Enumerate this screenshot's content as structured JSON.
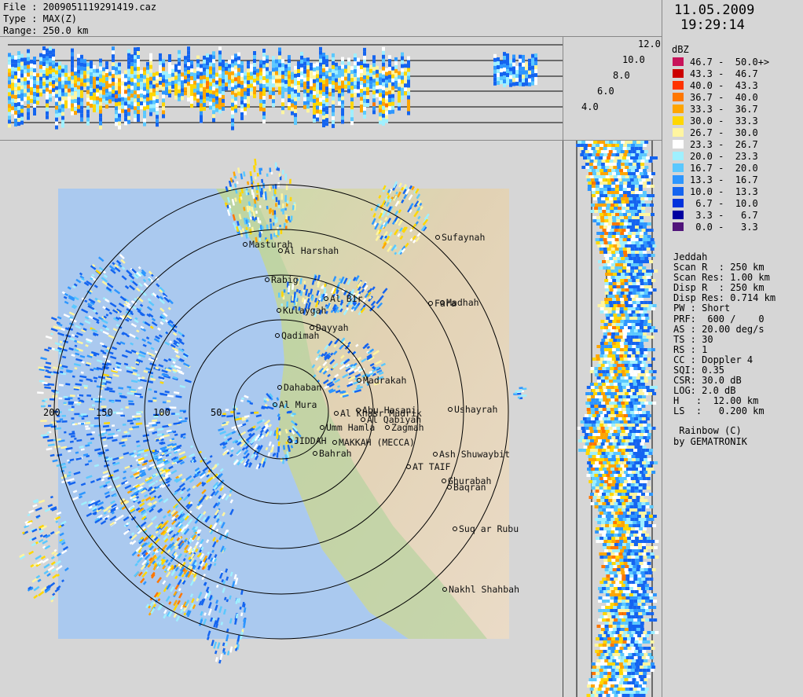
{
  "header": {
    "file": "File : 2009051119291419.caz",
    "type": "Type : MAX(Z)",
    "range": "Range: 250.0 km"
  },
  "timestamp": {
    "date": "11.05.2009",
    "time": "19:29:14"
  },
  "legend": {
    "unit": "dBZ",
    "entries": [
      {
        "label": "46.7 -  50.0+>",
        "color": "#c8145a"
      },
      {
        "label": "43.3 -  46.7",
        "color": "#cc0000"
      },
      {
        "label": "40.0 -  43.3",
        "color": "#ff3300"
      },
      {
        "label": "36.7 -  40.0",
        "color": "#ff7700"
      },
      {
        "label": "33.3 -  36.7",
        "color": "#ffa500"
      },
      {
        "label": "30.0 -  33.3",
        "color": "#ffd700"
      },
      {
        "label": "26.7 -  30.0",
        "color": "#fff5a0"
      },
      {
        "label": "23.3 -  26.7",
        "color": "#ffffff"
      },
      {
        "label": "20.0 -  23.3",
        "color": "#9ff0ff"
      },
      {
        "label": "16.7 -  20.0",
        "color": "#5ac8ff"
      },
      {
        "label": "13.3 -  16.7",
        "color": "#2d96ff"
      },
      {
        "label": "10.0 -  13.3",
        "color": "#1464f0"
      },
      {
        "label": " 6.7 -  10.0",
        "color": "#0032dc"
      },
      {
        "label": " 3.3 -   6.7",
        "color": "#0000a0"
      },
      {
        "label": " 0.0 -   3.3",
        "color": "#50147a"
      }
    ]
  },
  "radar_info": {
    "station": "Jeddah",
    "lines": [
      "Scan R  : 250 km",
      "Scan Res: 1.00 km",
      "Disp R  : 250 km",
      "Disp Res: 0.714 km",
      "PW : Short",
      "PRF:  600 /    0",
      "AS : 20.00 deg/s",
      "TS : 30",
      "RS : 1",
      "CC : Doppler 4",
      "SQI: 0.35",
      "CSR: 30.0 dB",
      "LOG: 2.0 dB",
      "H   :  12.00 km",
      "LS  :   0.200 km"
    ]
  },
  "brand": {
    "line1": " Rainbow (C)",
    "line2": "by GEMATRONIK"
  },
  "height_axis": [
    "12.0",
    "10.0",
    "8.0",
    "6.0",
    "4.0"
  ],
  "range_rings": [
    "200",
    "150",
    "100",
    "50"
  ],
  "places": [
    {
      "name": "Sufaynah"
    },
    {
      "name": "Masturah"
    },
    {
      "name": "Al Harshah"
    },
    {
      "name": "Rabig"
    },
    {
      "name": "Al Bir"
    },
    {
      "name": "Fara"
    },
    {
      "name": "Madhah"
    },
    {
      "name": "Kulaygah"
    },
    {
      "name": "Dayyah"
    },
    {
      "name": "Qadimah"
    },
    {
      "name": "Madrakah"
    },
    {
      "name": "Dahaban"
    },
    {
      "name": "Ushayrah"
    },
    {
      "name": "Abu Hasani"
    },
    {
      "name": "Al Khasr Mudrik"
    },
    {
      "name": "Al Qabiyah"
    },
    {
      "name": "Al Mura"
    },
    {
      "name": "Umm Hamla"
    },
    {
      "name": "Zagmah"
    },
    {
      "name": "JIDDAH"
    },
    {
      "name": "MAKKAH (MECCA)"
    },
    {
      "name": "Bahrah"
    },
    {
      "name": "Ash Shuwaybit"
    },
    {
      "name": "AT TAIF"
    },
    {
      "name": "Ghurabah"
    },
    {
      "name": "Baqran"
    },
    {
      "name": "Suq ar Rubu"
    },
    {
      "name": "Nakhl Shahbah"
    }
  ]
}
